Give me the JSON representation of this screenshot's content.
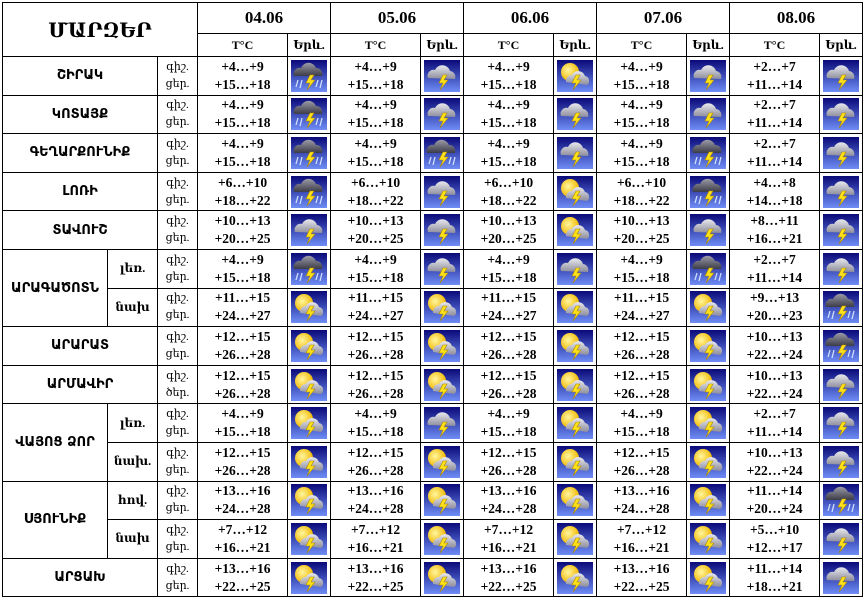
{
  "header": {
    "title": "ՄԱՐԶԵՐ",
    "dates": [
      "04.06",
      "05.06",
      "06.06",
      "07.06",
      "08.06"
    ],
    "temp_label": "T°C",
    "sky_label": "Երև."
  },
  "regions": [
    {
      "name": "ՇԻՐԱԿ",
      "rows": [
        {
          "labels": [
            "գիշ.",
            "ցեր."
          ],
          "days": [
            [
              "+4…+9",
              "+15…+18"
            ],
            [
              "+4…+9",
              "+15…+18"
            ],
            [
              "+4…+9",
              "+15…+18"
            ],
            [
              "+4…+9",
              "+15…+18"
            ],
            [
              "+2…+7",
              "+11…+14"
            ]
          ]
        }
      ]
    },
    {
      "name": "ԿՈՏԱՅՔ",
      "rows": [
        {
          "labels": [
            "գիշ.",
            "ցեր."
          ],
          "days": [
            [
              "+4…+9",
              "+15…+18"
            ],
            [
              "+4…+9",
              "+15…+18"
            ],
            [
              "+4…+9",
              "+15…+18"
            ],
            [
              "+4…+9",
              "+15…+18"
            ],
            [
              "+2…+7",
              "+11…+14"
            ]
          ]
        }
      ]
    },
    {
      "name": "ԳԵՂԱՐՔՈՒՆԻՔ",
      "rows": [
        {
          "labels": [
            "գիշ.",
            "ցեր."
          ],
          "days": [
            [
              "+4…+9",
              "+15…+18"
            ],
            [
              "+4…+9",
              "+15…+18"
            ],
            [
              "+4…+9",
              "+15…+18"
            ],
            [
              "+4…+9",
              "+15…+18"
            ],
            [
              "+2…+7",
              "+11…+14"
            ]
          ]
        }
      ]
    },
    {
      "name": "ԼՈՌԻ",
      "rows": [
        {
          "labels": [
            "գիշ.",
            "ցեր."
          ],
          "days": [
            [
              "+6…+10",
              "+18…+22"
            ],
            [
              "+6…+10",
              "+18…+22"
            ],
            [
              "+6…+10",
              "+18…+22"
            ],
            [
              "+6…+10",
              "+18…+22"
            ],
            [
              "+4…+8",
              "+14…+18"
            ]
          ]
        }
      ]
    },
    {
      "name": "ՏԱՎՈՒՇ",
      "rows": [
        {
          "labels": [
            "գիշ.",
            "ցեր."
          ],
          "days": [
            [
              "+10…+13",
              "+20…+25"
            ],
            [
              "+10…+13",
              "+20…+25"
            ],
            [
              "+10…+13",
              "+20…+25"
            ],
            [
              "+10…+13",
              "+20…+25"
            ],
            [
              "+8…+11",
              "+16…+21"
            ]
          ]
        }
      ]
    },
    {
      "name": "ԱՐԱԳԱԾՈՏՆ",
      "rows": [
        {
          "sub": "լեռ.",
          "labels": [
            "գիշ.",
            "ցեր."
          ],
          "days": [
            [
              "+4…+9",
              "+15…+18"
            ],
            [
              "+4…+9",
              "+15…+18"
            ],
            [
              "+4…+9",
              "+15…+18"
            ],
            [
              "+4…+9",
              "+15…+18"
            ],
            [
              "+2…+7",
              "+11…+14"
            ]
          ]
        },
        {
          "sub": "նախ",
          "labels": [
            "գիշ.",
            "ցեր."
          ],
          "days": [
            [
              "+11…+15",
              "+24…+27"
            ],
            [
              "+11…+15",
              "+24…+27"
            ],
            [
              "+11…+15",
              "+24…+27"
            ],
            [
              "+11…+15",
              "+24…+27"
            ],
            [
              "+9…+13",
              "+20…+23"
            ]
          ]
        }
      ]
    },
    {
      "name": "ԱՐԱՐԱՏ",
      "rows": [
        {
          "labels": [
            "գիշ.",
            "ցեր."
          ],
          "days": [
            [
              "+12…+15",
              "+26…+28"
            ],
            [
              "+12…+15",
              "+26…+28"
            ],
            [
              "+12…+15",
              "+26…+28"
            ],
            [
              "+12…+15",
              "+26…+28"
            ],
            [
              "+10…+13",
              "+22…+24"
            ]
          ]
        }
      ]
    },
    {
      "name": "ԱՐՄԱՎԻՐ",
      "rows": [
        {
          "labels": [
            "գիշ.",
            "ծեր."
          ],
          "days": [
            [
              "+12…+15",
              "+26…+28"
            ],
            [
              "+12…+15",
              "+26…+28"
            ],
            [
              "+12…+15",
              "+26…+28"
            ],
            [
              "+12…+15",
              "+26…+28"
            ],
            [
              "+10…+13",
              "+22…+24"
            ]
          ]
        }
      ]
    },
    {
      "name": "ՎԱՅՈՑ ՁՈՐ",
      "rows": [
        {
          "sub": "լեռ.",
          "labels": [
            "գիշ.",
            "ցեր."
          ],
          "days": [
            [
              "+4…+9",
              "+15…+18"
            ],
            [
              "+4…+9",
              "+15…+18"
            ],
            [
              "+4…+9",
              "+15…+18"
            ],
            [
              "+4…+9",
              "+15…+18"
            ],
            [
              "+2…+7",
              "+11…+14"
            ]
          ]
        },
        {
          "sub": "նախ.",
          "labels": [
            "գիշ.",
            "ցեր."
          ],
          "days": [
            [
              "+12…+15",
              "+26…+28"
            ],
            [
              "+12…+15",
              "+26…+28"
            ],
            [
              "+12…+15",
              "+26…+28"
            ],
            [
              "+12…+15",
              "+26…+28"
            ],
            [
              "+10…+13",
              "+22…+24"
            ]
          ]
        }
      ]
    },
    {
      "name": "ՍՅՈՒՆԻՔ",
      "rows": [
        {
          "sub": "հով.",
          "labels": [
            "գիշ.",
            "ցեր."
          ],
          "days": [
            [
              "+13…+16",
              "+24…+28"
            ],
            [
              "+13…+16",
              "+24…+28"
            ],
            [
              "+13…+16",
              "+24…+28"
            ],
            [
              "+13…+16",
              "+24…+28"
            ],
            [
              "+11…+14",
              "+20…+24"
            ]
          ]
        },
        {
          "sub": "նախ",
          "labels": [
            "գիշ.",
            "ցեր."
          ],
          "days": [
            [
              "+7…+12",
              "+16…+21"
            ],
            [
              "+7…+12",
              "+16…+21"
            ],
            [
              "+7…+12",
              "+16…+21"
            ],
            [
              "+7…+12",
              "+16…+21"
            ],
            [
              "+5…+10",
              "+12…+17"
            ]
          ]
        }
      ]
    },
    {
      "name": "ԱՐՑԱԽ",
      "rows": [
        {
          "labels": [
            "գիշ.",
            "ցեր."
          ],
          "days": [
            [
              "+13…+16",
              "+22…+25"
            ],
            [
              "+13…+16",
              "+22…+25"
            ],
            [
              "+13…+16",
              "+22…+25"
            ],
            [
              "+13…+16",
              "+22…+25"
            ],
            [
              "+11…+14",
              "+18…+21"
            ]
          ]
        }
      ]
    }
  ]
}
